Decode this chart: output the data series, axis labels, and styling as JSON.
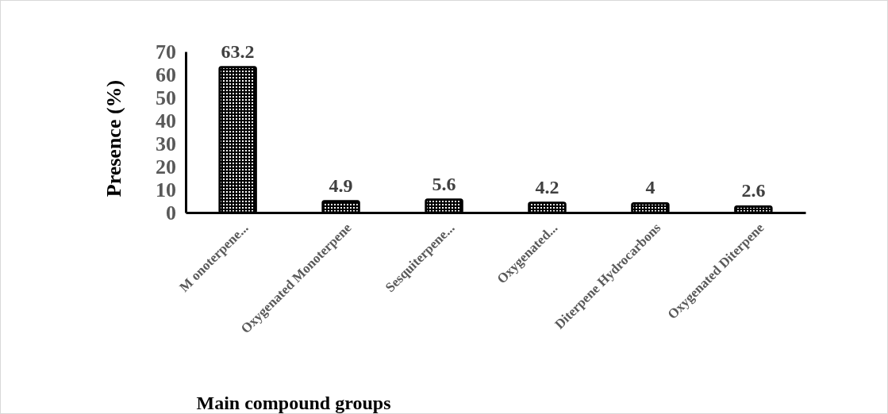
{
  "chart_data": {
    "type": "bar",
    "xlabel": "Main compound groups",
    "ylabel": "Presence (%)",
    "categories": [
      "M onoterpene...",
      "Oxygenated Monoterpene",
      "Sesquiterpene...",
      "Oxygenated...",
      "Diterpene Hydrocarbons",
      "Oxygenated Diterpene"
    ],
    "values": [
      63.2,
      4.9,
      5.6,
      4.2,
      4,
      2.6
    ],
    "color": "#000000",
    "ylim": [
      0,
      70
    ],
    "yticks": [
      0,
      10,
      20,
      30,
      40,
      50,
      60,
      70
    ],
    "data_labels": true
  }
}
